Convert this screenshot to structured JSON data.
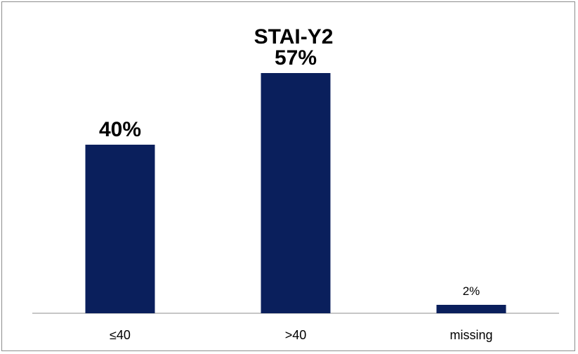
{
  "chart_data": {
    "type": "bar",
    "title": "STAI-Y2",
    "xlabel": "",
    "ylabel": "",
    "categories": [
      "≤40",
      ">40",
      "missing"
    ],
    "values": [
      40,
      57,
      2
    ],
    "data_labels": [
      "40%",
      "57%",
      "2%"
    ],
    "ylim": [
      0,
      62
    ],
    "grid": false,
    "legend": "none",
    "bar_color": "#0a1f5c"
  }
}
